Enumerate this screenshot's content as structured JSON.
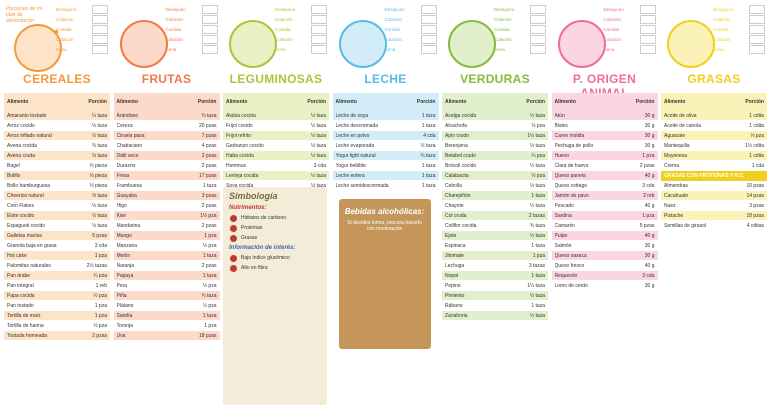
{
  "header_note": "Porciones de mi plan de alimentación",
  "meals": [
    "Desayuno",
    "Colación",
    "Comida",
    "Colación",
    "Cena"
  ],
  "table_headers": [
    "Alimento",
    "Porción"
  ],
  "columns": [
    {
      "title": "CEREALES",
      "color": "#f39a3d",
      "light": "#fde3c8",
      "rows": [
        [
          "Amaranto tostado",
          "¼ taza"
        ],
        [
          "Arroz cocido",
          "½ taza"
        ],
        [
          "Arroz inflado natural",
          "½ taza"
        ],
        [
          "Avena cocida",
          "¾ taza"
        ],
        [
          "Avena cruda",
          "⅓ taza"
        ],
        [
          "Bagel",
          "⅓ pieza"
        ],
        [
          "Bolillo",
          "⅓ pieza"
        ],
        [
          "Bollo hamburguesa",
          "⅓ pieza"
        ],
        [
          "Cheerios natural",
          "⅔ taza"
        ],
        [
          "Corn Flakes",
          "½ taza"
        ],
        [
          "Elote cocido",
          "½ taza"
        ],
        [
          "Espagueti cocido",
          "⅓ taza"
        ],
        [
          "Galletas marías",
          "5 pzas"
        ],
        [
          "Granola baja en grasa",
          "3 cda"
        ],
        [
          "Hot cake",
          "1 pza"
        ],
        [
          "Palomitas naturales",
          "2½ tazas"
        ],
        [
          "Pan árabe",
          "¼ pza"
        ],
        [
          "Pan integral",
          "1 reb"
        ],
        [
          "Papa cocida",
          "½ pza"
        ],
        [
          "Pan tostado",
          "1 pza"
        ],
        [
          "Tortilla de maíz",
          "1 pza"
        ],
        [
          "Tortilla de harina",
          "½ pza"
        ],
        [
          "Tostada horneada",
          "2 pzas"
        ]
      ]
    },
    {
      "title": "FRUTAS",
      "color": "#f07a4a",
      "light": "#fcd9c8",
      "rows": [
        [
          "Arándano",
          "¾ taza"
        ],
        [
          "Cereza",
          "20 pzas"
        ],
        [
          "Ciruela pasa",
          "7 pzas"
        ],
        [
          "Chabacano",
          "4 pzas"
        ],
        [
          "Dátil seco",
          "2 pzas"
        ],
        [
          "Durazno",
          "2 pzas"
        ],
        [
          "Fresa",
          "17 pzas"
        ],
        [
          "Frambuesa",
          "1 taza"
        ],
        [
          "Guayaba",
          "3 pzas"
        ],
        [
          "Higo",
          "2 pzas"
        ],
        [
          "Kiwi",
          "1½ pza"
        ],
        [
          "Mandarina",
          "2 pzas"
        ],
        [
          "Mango",
          "1 pza"
        ],
        [
          "Manzana",
          "½ pza"
        ],
        [
          "Melón",
          "1 taza"
        ],
        [
          "Naranja",
          "2 pzas"
        ],
        [
          "Papaya",
          "1 taza"
        ],
        [
          "Pera",
          "½ pza"
        ],
        [
          "Piña",
          "¾ taza"
        ],
        [
          "Plátano",
          "½ pza"
        ],
        [
          "Sandía",
          "1 taza"
        ],
        [
          "Toronja",
          "1 pza"
        ],
        [
          "Uva",
          "18 pzas"
        ]
      ]
    },
    {
      "title": "LEGUMINOSAS",
      "color": "#a9c63a",
      "light": "#e8f1c4",
      "rows": [
        [
          "Alubia cocida",
          "½ taza"
        ],
        [
          "Frijol cocido",
          "½ taza"
        ],
        [
          "Frijol refrito",
          "⅓ taza"
        ],
        [
          "Garbanzo cocido",
          "½ taza"
        ],
        [
          "Haba cocida",
          "½ taza"
        ],
        [
          "Hummus",
          "3 cda"
        ],
        [
          "Lenteja cocida",
          "½ taza"
        ],
        [
          "Soya cocida",
          "⅓ taza"
        ]
      ]
    },
    {
      "title": "LECHE",
      "color": "#5bbbe6",
      "light": "#d2ecf8",
      "rows": [
        [
          "Leche de soya",
          "1 taza"
        ],
        [
          "Leche descremada",
          "1 taza"
        ],
        [
          "Leche en polvo",
          "4 cda"
        ],
        [
          "Leche evaporada",
          "½ taza"
        ],
        [
          "Yogur light natural",
          "¾ taza"
        ],
        [
          "Yogur bebible",
          "1 taza"
        ],
        [
          "Leche entera",
          "1 taza"
        ],
        [
          "Leche semidescremada",
          "1 taza"
        ]
      ]
    },
    {
      "title": "VERDURAS",
      "color": "#86bb3c",
      "light": "#e1efcc",
      "rows": [
        [
          "Acelga cocida",
          "½ taza"
        ],
        [
          "Alcachofa",
          "½ pza"
        ],
        [
          "Apio crudo",
          "1½ taza"
        ],
        [
          "Berenjena",
          "½ taza"
        ],
        [
          "Betabel crudo",
          "¼ pza"
        ],
        [
          "Brócoli cocido",
          "½ taza"
        ],
        [
          "Calabacita",
          "½ pza"
        ],
        [
          "Cebolla",
          "½ taza"
        ],
        [
          "Champiñón",
          "1 taza"
        ],
        [
          "Chayote",
          "½ taza"
        ],
        [
          "Col cruda",
          "2 tazas"
        ],
        [
          "Coliflor cocida",
          "¾ taza"
        ],
        [
          "Ejote",
          "½ taza"
        ],
        [
          "Espinaca",
          "1 taza"
        ],
        [
          "Jitomate",
          "1 pza"
        ],
        [
          "Lechuga",
          "3 tazas"
        ],
        [
          "Nopal",
          "1 taza"
        ],
        [
          "Pepino",
          "1¼ taza"
        ],
        [
          "Pimiento",
          "½ taza"
        ],
        [
          "Rábano",
          "1 taza"
        ],
        [
          "Zanahoria",
          "½ taza"
        ]
      ]
    },
    {
      "title": "P. ORIGEN ANIMAL",
      "color": "#ee6f92",
      "light": "#fbd5df",
      "rows": [
        [
          "Atún",
          "30 g"
        ],
        [
          "Bistec",
          "30 g"
        ],
        [
          "Carne molida",
          "30 g"
        ],
        [
          "Pechuga de pollo",
          "30 g"
        ],
        [
          "Huevo",
          "1 pza"
        ],
        [
          "Clara de huevo",
          "2 pzas"
        ],
        [
          "Queso panela",
          "40 g"
        ],
        [
          "Queso cottage",
          "3 cda"
        ],
        [
          "Jamón de pavo",
          "2 reb"
        ],
        [
          "Pescado",
          "40 g"
        ],
        [
          "Sardina",
          "1 pza"
        ],
        [
          "Camarón",
          "5 pzas"
        ],
        [
          "Pulpo",
          "40 g"
        ],
        [
          "Salmón",
          "30 g"
        ],
        [
          "Queso oaxaca",
          "30 g"
        ],
        [
          "Queso fresco",
          "40 g"
        ],
        [
          "Requesón",
          "3 cda"
        ],
        [
          "Lomo de cerdo",
          "30 g"
        ]
      ]
    },
    {
      "title": "GRASAS",
      "color": "#efd01c",
      "light": "#fbf2b8",
      "rows": [
        [
          "Aceite de oliva",
          "1 cdita"
        ],
        [
          "Aceite de canola",
          "1 cdita"
        ],
        [
          "Aguacate",
          "⅓ pza"
        ],
        [
          "Mantequilla",
          "1½ cdita"
        ],
        [
          "Mayonesa",
          "1 cdita"
        ],
        [
          "Crema",
          "1 cda"
        ],
        [
          "GRASAS CON PROTEÍNAS Y H.C."
        ],
        [
          "Almendras",
          "10 pzas"
        ],
        [
          "Cacahuate",
          "14 pzas"
        ],
        [
          "Nuez",
          "3 pzas"
        ],
        [
          "Pistache",
          "18 pzas"
        ],
        [
          "Semillas de girasol",
          "4 cditas"
        ]
      ]
    }
  ],
  "symbology": {
    "title": "Simbología",
    "subtitle": "Nutrimentos:",
    "items": [
      "Hidratos de carbono",
      "Proteínas",
      "Grasas"
    ],
    "info_title": "Información de interés:",
    "info": [
      "Bajo índice glucémico",
      "Alto en fibra"
    ]
  },
  "drinks": {
    "title": "Bebidas alcohólicas:",
    "note": "Si decides tomar, procura hacerlo con moderación"
  }
}
